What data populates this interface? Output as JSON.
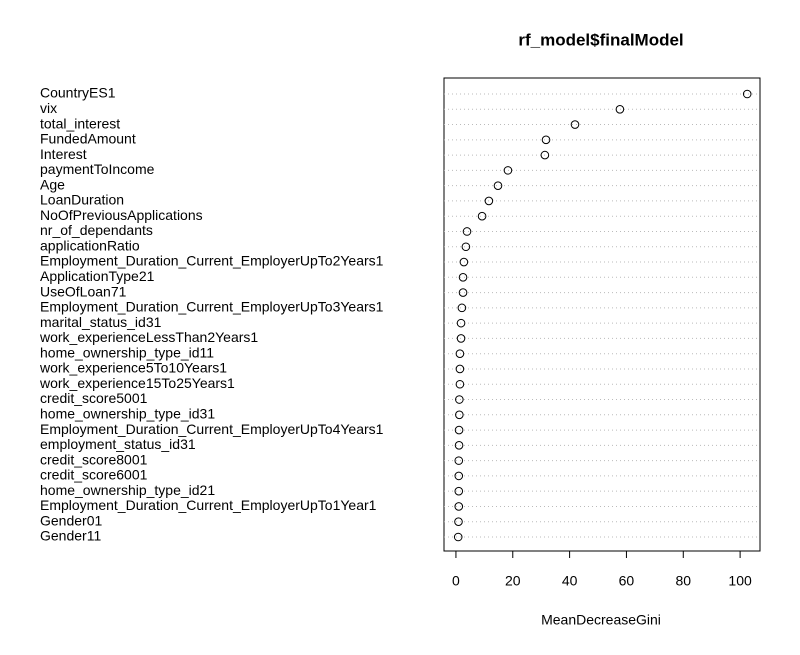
{
  "chart_data": {
    "type": "dot",
    "title": "rf_model$finalModel",
    "x_label": "MeanDecreaseGini",
    "categories": [
      "CountryES1",
      "vix",
      "total_interest",
      "FundedAmount",
      "Interest",
      "paymentToIncome",
      "Age",
      "LoanDuration",
      "NoOfPreviousApplications",
      "nr_of_dependants",
      "applicationRatio",
      "Employment_Duration_Current_EmployerUpTo2Years1",
      "ApplicationType21",
      "UseOfLoan71",
      "Employment_Duration_Current_EmployerUpTo3Years1",
      "marital_status_id31",
      "work_experienceLessThan2Years1",
      "home_ownership_type_id11",
      "work_experience5To10Years1",
      "work_experience15To25Years1",
      "credit_score5001",
      "home_ownership_type_id31",
      "Employment_Duration_Current_EmployerUpTo4Years1",
      "employment_status_id31",
      "credit_score8001",
      "credit_score6001",
      "home_ownership_type_id21",
      "Employment_Duration_Current_EmployerUpTo1Year1",
      "Gender01",
      "Gender11"
    ],
    "values": [
      102.5,
      57.7,
      41.9,
      31.7,
      31.3,
      18.3,
      14.8,
      11.6,
      9.2,
      3.9,
      3.5,
      2.8,
      2.5,
      2.5,
      2.1,
      1.8,
      1.8,
      1.4,
      1.4,
      1.4,
      1.2,
      1.2,
      1.1,
      1.1,
      1.0,
      1.0,
      1.0,
      1.0,
      0.9,
      0.8
    ],
    "color": "#000000",
    "xlim": [
      -4.2,
      107
    ],
    "xticks": [
      0,
      20,
      40,
      60,
      80,
      100
    ],
    "grid": true
  }
}
